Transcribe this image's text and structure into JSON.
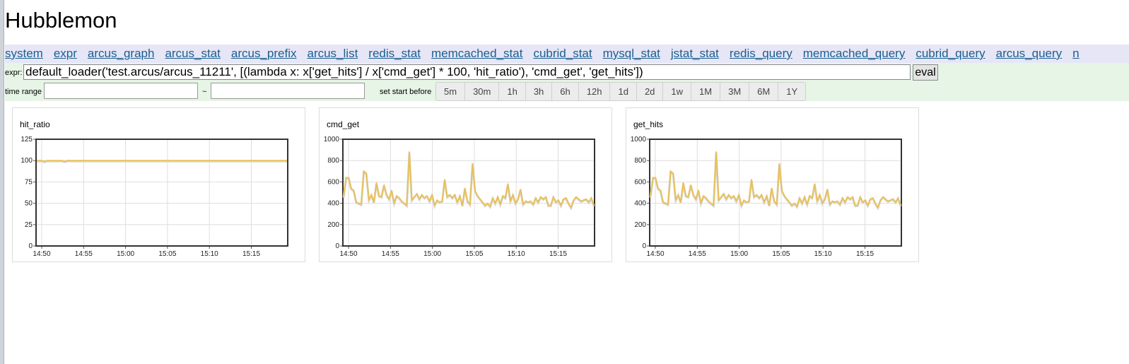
{
  "app": {
    "title": "Hubblemon"
  },
  "nav": {
    "items": [
      "system",
      "expr",
      "arcus_graph",
      "arcus_stat",
      "arcus_prefix",
      "arcus_list",
      "redis_stat",
      "memcached_stat",
      "cubrid_stat",
      "mysql_stat",
      "jstat_stat",
      "redis_query",
      "memcached_query",
      "cubrid_query",
      "arcus_query",
      "n"
    ]
  },
  "expr": {
    "label": "expr:",
    "value": "default_loader('test.arcus/arcus_11211', [(lambda x: x['get_hits'] / x['cmd_get'] * 100, 'hit_ratio'), 'cmd_get', 'get_hits'])",
    "eval_label": "eval"
  },
  "time_range": {
    "label": "time range",
    "separator": "~",
    "start_value": "",
    "end_value": "",
    "set_start_label": "set start before",
    "buttons": [
      "5m",
      "30m",
      "1h",
      "3h",
      "6h",
      "12h",
      "1d",
      "2d",
      "1w",
      "1M",
      "3M",
      "6M",
      "1Y"
    ]
  },
  "colors": {
    "series": "#e8c15a",
    "nav_bg": "#e6e6f7",
    "controls_bg": "#e6f5e6",
    "link": "#1a5f8f"
  },
  "chart_data": [
    {
      "type": "line",
      "title": "hit_ratio",
      "x_tick_labels": [
        "14:50",
        "14:55",
        "15:00",
        "15:05",
        "15:10",
        "15:15"
      ],
      "ylim": [
        0,
        125
      ],
      "yticks": [
        0,
        25,
        50,
        75,
        100,
        125
      ],
      "grid": true,
      "series": [
        {
          "values": [
            100,
            100,
            100,
            99,
            100,
            100,
            100,
            100,
            100,
            100,
            100,
            99,
            100,
            100,
            100,
            100,
            100,
            100,
            100,
            100,
            100,
            100,
            100,
            100,
            100,
            100,
            100,
            100,
            100,
            100,
            100,
            100,
            100,
            100,
            100,
            100,
            100,
            100,
            100,
            100,
            100,
            100,
            100,
            100,
            100,
            100,
            100,
            100,
            100,
            100,
            100,
            100,
            100,
            100,
            100,
            100,
            100,
            100,
            100,
            100,
            100,
            100,
            100,
            100,
            100,
            100,
            100,
            100,
            100,
            100,
            100,
            100,
            100,
            100,
            100,
            100,
            100,
            100,
            100,
            100,
            100,
            100,
            100,
            100,
            100,
            100,
            100,
            100,
            100,
            100,
            100,
            100,
            100,
            100,
            100,
            100,
            100,
            100,
            100,
            100
          ]
        }
      ]
    },
    {
      "type": "line",
      "title": "cmd_get",
      "x_tick_labels": [
        "14:50",
        "14:55",
        "15:00",
        "15:05",
        "15:10",
        "15:15"
      ],
      "ylim": [
        0,
        1000
      ],
      "yticks": [
        0,
        200,
        400,
        600,
        800,
        1000
      ],
      "grid": true,
      "series": [
        {
          "values": [
            460,
            640,
            640,
            540,
            520,
            410,
            400,
            390,
            700,
            680,
            430,
            480,
            410,
            590,
            470,
            460,
            570,
            480,
            440,
            520,
            400,
            470,
            450,
            420,
            400,
            380,
            880,
            430,
            460,
            490,
            440,
            480,
            450,
            470,
            420,
            480,
            380,
            430,
            410,
            420,
            620,
            460,
            480,
            450,
            480,
            410,
            470,
            380,
            540,
            420,
            390,
            770,
            520,
            470,
            440,
            410,
            380,
            400,
            370,
            450,
            400,
            460,
            390,
            470,
            450,
            580,
            420,
            480,
            400,
            440,
            530,
            390,
            420,
            410,
            420,
            390,
            450,
            410,
            460,
            440,
            460,
            380,
            380,
            460,
            410,
            430,
            380,
            440,
            450,
            400,
            360,
            430,
            460,
            440,
            420,
            430,
            440,
            410,
            450,
            380
          ]
        }
      ]
    },
    {
      "type": "line",
      "title": "get_hits",
      "x_tick_labels": [
        "14:50",
        "14:55",
        "15:00",
        "15:05",
        "15:10",
        "15:15"
      ],
      "ylim": [
        0,
        1000
      ],
      "yticks": [
        0,
        200,
        400,
        600,
        800,
        1000
      ],
      "grid": true,
      "series": [
        {
          "values": [
            460,
            640,
            640,
            540,
            520,
            410,
            400,
            390,
            700,
            680,
            430,
            480,
            410,
            590,
            470,
            460,
            570,
            480,
            440,
            520,
            400,
            470,
            450,
            420,
            400,
            380,
            880,
            430,
            460,
            490,
            440,
            480,
            450,
            470,
            420,
            480,
            380,
            430,
            410,
            420,
            620,
            460,
            480,
            450,
            480,
            410,
            470,
            380,
            540,
            420,
            390,
            770,
            520,
            470,
            440,
            410,
            380,
            400,
            370,
            450,
            400,
            460,
            390,
            470,
            450,
            580,
            420,
            480,
            400,
            440,
            530,
            390,
            420,
            410,
            420,
            390,
            450,
            410,
            460,
            440,
            460,
            380,
            380,
            460,
            410,
            430,
            380,
            440,
            450,
            400,
            360,
            430,
            460,
            440,
            420,
            430,
            440,
            410,
            450,
            380
          ]
        }
      ]
    }
  ]
}
